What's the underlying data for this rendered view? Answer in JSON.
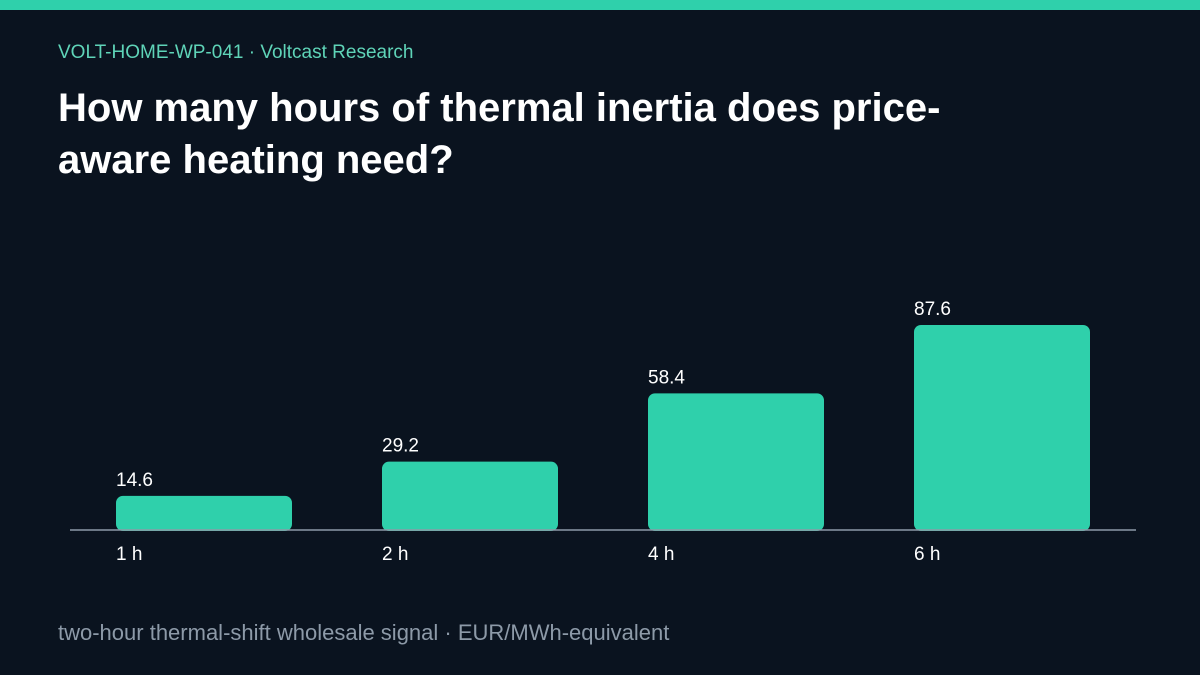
{
  "header": {
    "kicker": "VOLT-HOME-WP-041 · Voltcast Research",
    "title": "How many hours of thermal inertia does price-aware heating need?"
  },
  "footer": {
    "note": "two-hour thermal-shift wholesale signal · EUR/MWh-equivalent"
  },
  "colors": {
    "background": "#0a131f",
    "accent": "#2fd0ab",
    "bar": "#2fd0ab",
    "axis": "#8d9aa8",
    "label": "#ffffff"
  },
  "chart_data": {
    "type": "bar",
    "categories": [
      "1 h",
      "2 h",
      "4 h",
      "6 h"
    ],
    "values": [
      14.6,
      29.2,
      58.4,
      87.6
    ],
    "data_labels": [
      "14.6",
      "29.2",
      "58.4",
      "87.6"
    ],
    "title": "",
    "xlabel": "",
    "ylabel": "",
    "ylim": [
      0,
      100
    ],
    "grid": false,
    "legend": "none"
  }
}
